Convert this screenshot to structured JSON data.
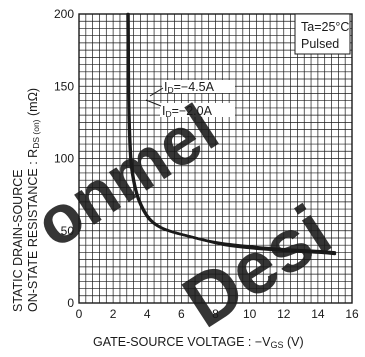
{
  "chart_data": {
    "type": "line",
    "xlabel_main": "GATE-SOURCE VOLTAGE : −V",
    "xlabel_sub": "GS",
    "xlabel_unit": " (V)",
    "ylabel_line1": "STATIC DRAIN-SOURCE",
    "ylabel_line2_main": "ON-STATE RESISTANCE : R",
    "ylabel_line2_sub": "DS (on)",
    "ylabel_line2_unit": " (mΩ)",
    "xlim": [
      0,
      16
    ],
    "ylim": [
      0,
      200
    ],
    "x_ticks": [
      "0",
      "2",
      "4",
      "6",
      "8",
      "10",
      "12",
      "14",
      "16"
    ],
    "y_ticks": [
      "0",
      "50",
      "100",
      "150",
      "200"
    ],
    "grid": true,
    "conditions": [
      "Ta=25°C",
      "Pulsed"
    ],
    "series": [
      {
        "name": "I D=−4.5A",
        "label_main": "I",
        "label_sub": "D",
        "label_value": "=−4.5A",
        "x": [
          2.9,
          2.92,
          2.97,
          3.05,
          3.15,
          3.3,
          3.5,
          3.8,
          4.2,
          4.8,
          5.5,
          6.5,
          7.5,
          8.5,
          10,
          12,
          14,
          15
        ],
        "y": [
          200,
          150,
          120,
          100,
          90,
          80,
          72,
          64,
          57,
          52,
          49,
          46,
          43,
          41,
          39,
          37,
          36,
          35
        ]
      },
      {
        "name": "I D=−2.0A",
        "label_main": "I",
        "label_sub": "D",
        "label_value": "=−2.0A",
        "x": [
          2.85,
          2.88,
          2.93,
          3.0,
          3.1,
          3.25,
          3.45,
          3.75,
          4.15,
          4.75,
          5.5,
          6.5,
          7.5,
          8.5,
          10,
          12,
          14,
          15
        ],
        "y": [
          200,
          150,
          120,
          100,
          90,
          80,
          72,
          64,
          57,
          52,
          49,
          46,
          43,
          40,
          38,
          36,
          35,
          34
        ]
      }
    ]
  },
  "watermark": {
    "text1": "onmel",
    "text2": "Desi",
    "color": "#e0201f"
  }
}
